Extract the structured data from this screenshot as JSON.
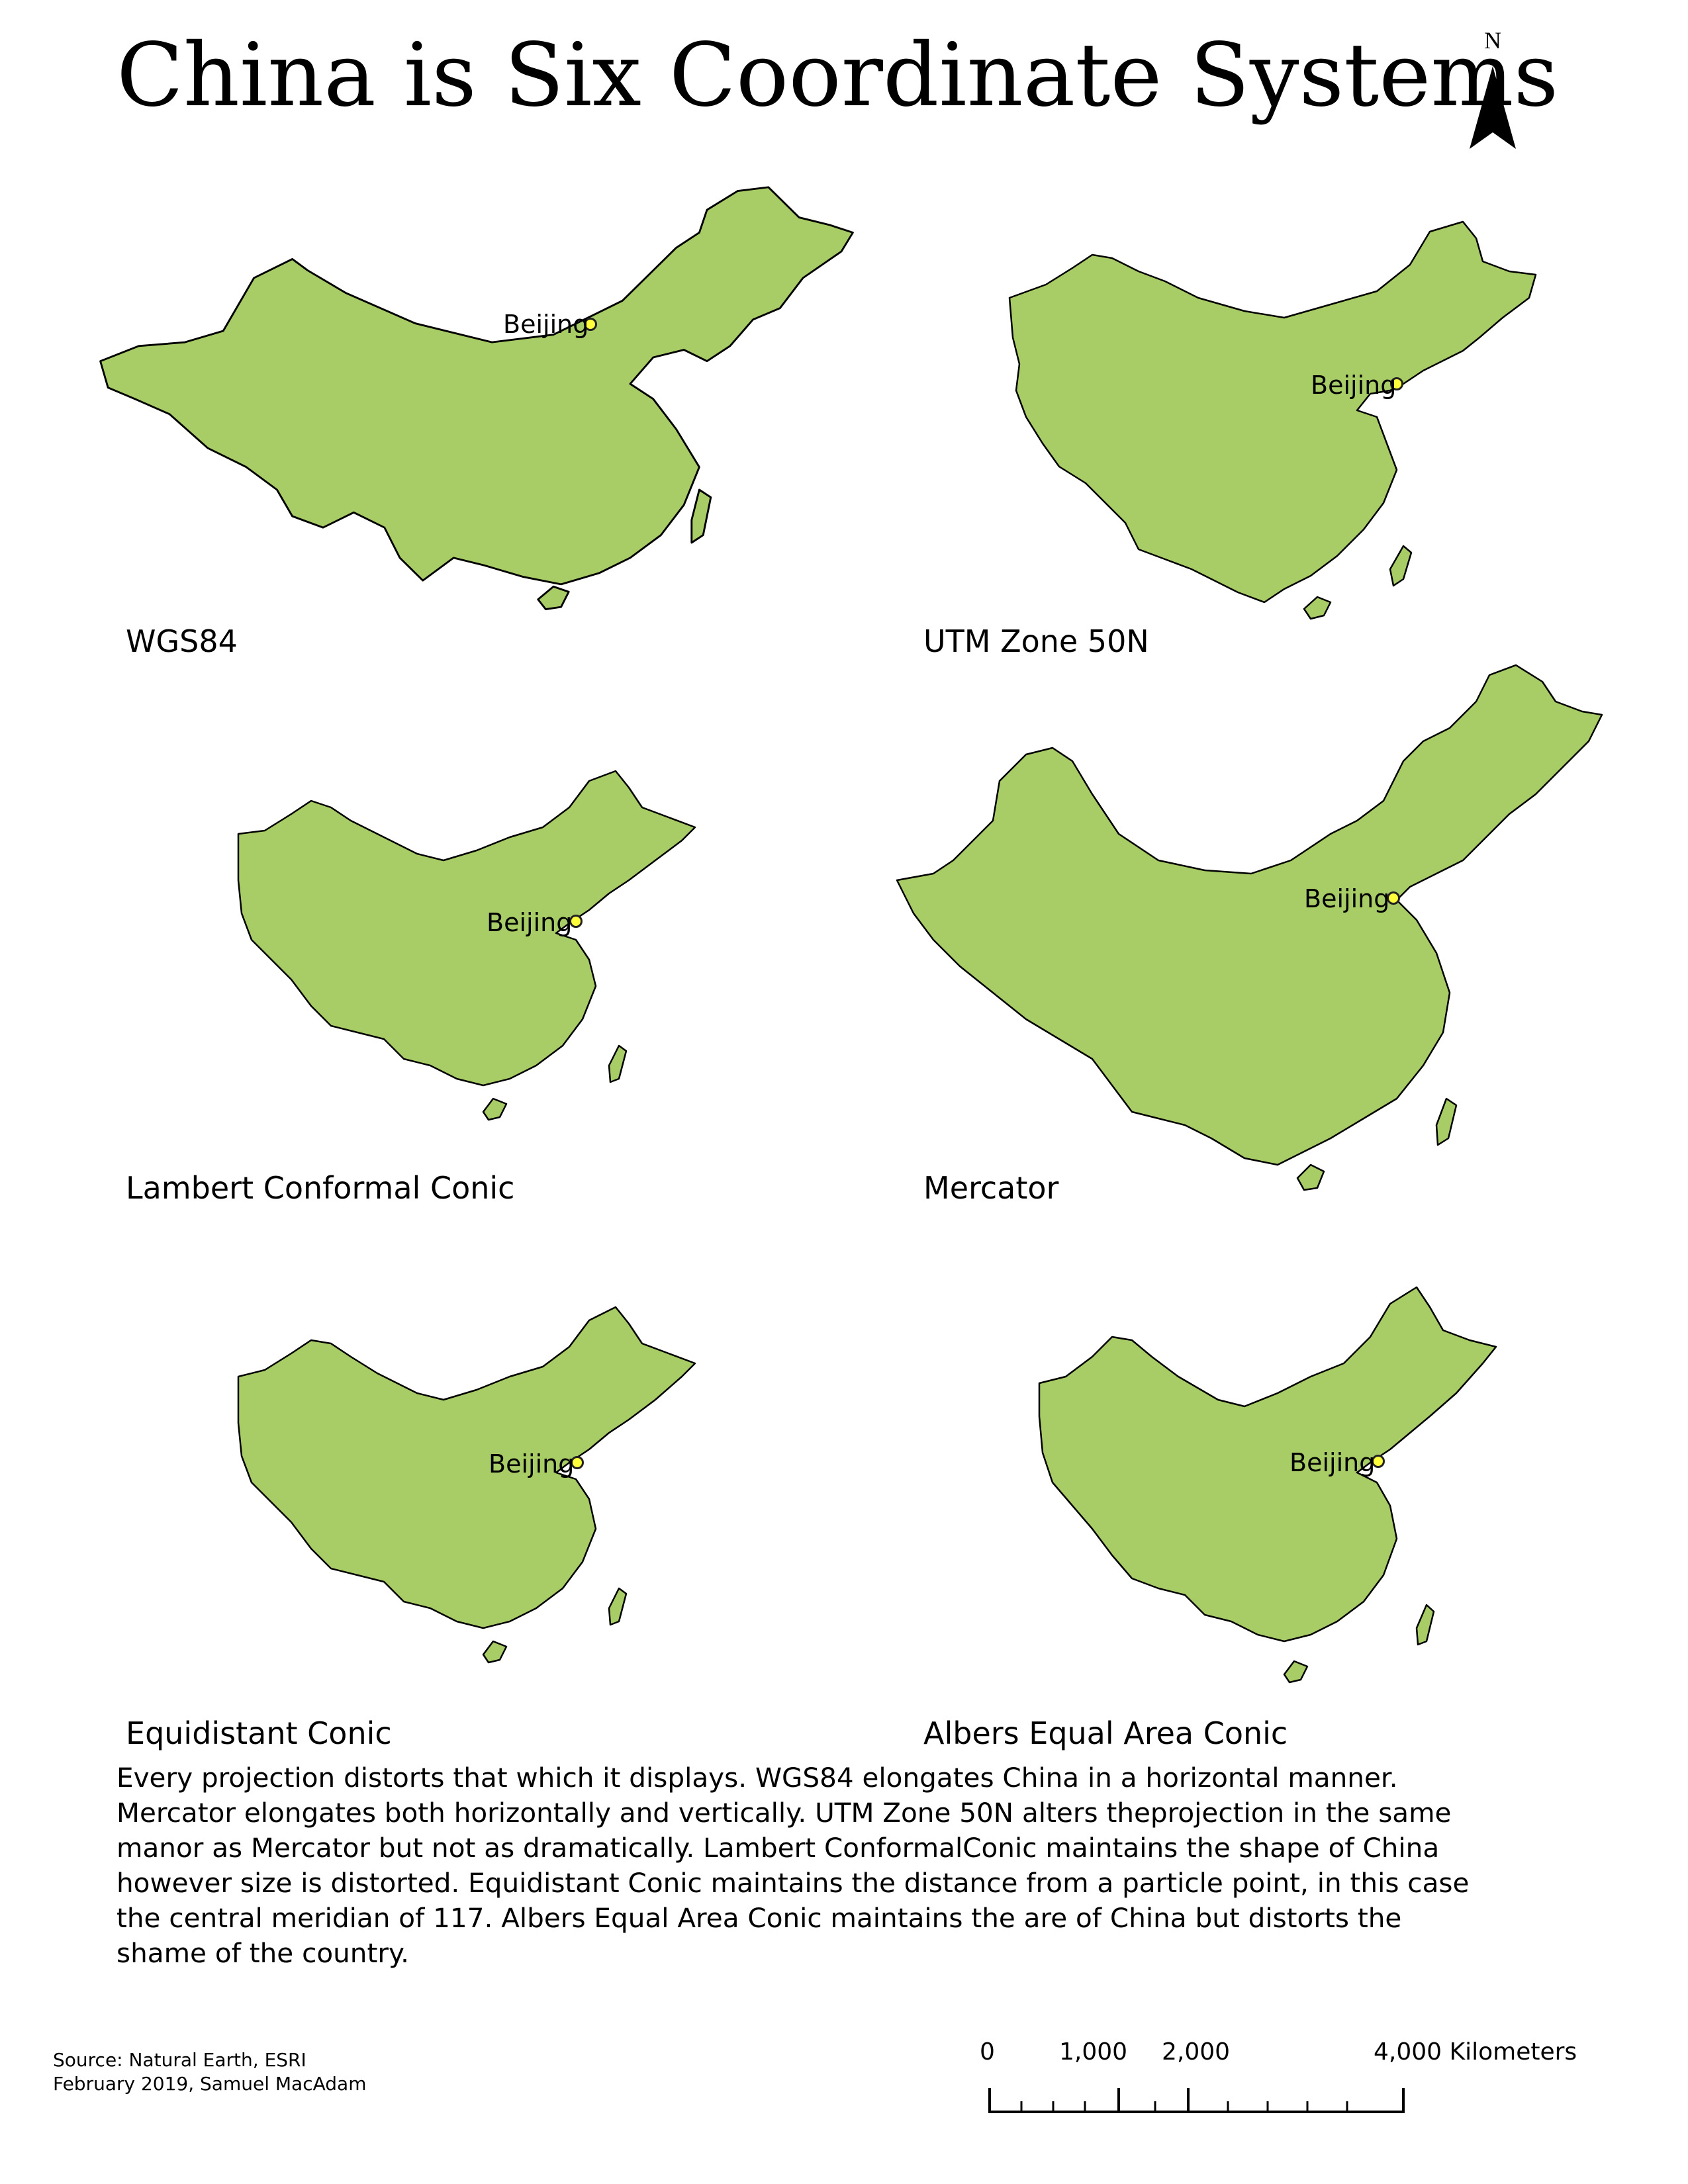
{
  "title": "China is Six Coordinate Systems",
  "north_arrow": {
    "label": "N"
  },
  "map_style": {
    "land_fill": "#a8cd66",
    "land_stroke": "#000000",
    "city_dot_fill": "#ffff3c"
  },
  "city_label": "Beijing",
  "projections": [
    {
      "name": "WGS84"
    },
    {
      "name": "UTM Zone 50N"
    },
    {
      "name": "Lambert Conformal Conic"
    },
    {
      "name": "Mercator"
    },
    {
      "name": "Equidistant Conic"
    },
    {
      "name": "Albers Equal Area Conic"
    }
  ],
  "description": "Every projection distorts that which it displays. WGS84 elongates China in a horizontal manner. Mercator elongates both horizontally and vertically. UTM Zone 50N alters theprojection in the same manor as Mercator but not as dramatically. Lambert ConformalConic maintains the shape of China however size is distorted. Equidistant Conic maintains the distance from a particle point, in this case the central meridian of 117. Albers Equal Area Conic maintains the are of China but distorts the shame of the country.",
  "source": {
    "line1": "Source: Natural Earth, ESRI",
    "line2": "February 2019, Samuel MacAdam"
  },
  "scale_bar": {
    "labels": [
      "0",
      "1,000",
      "2,000",
      "4,000 Kilometers"
    ]
  }
}
